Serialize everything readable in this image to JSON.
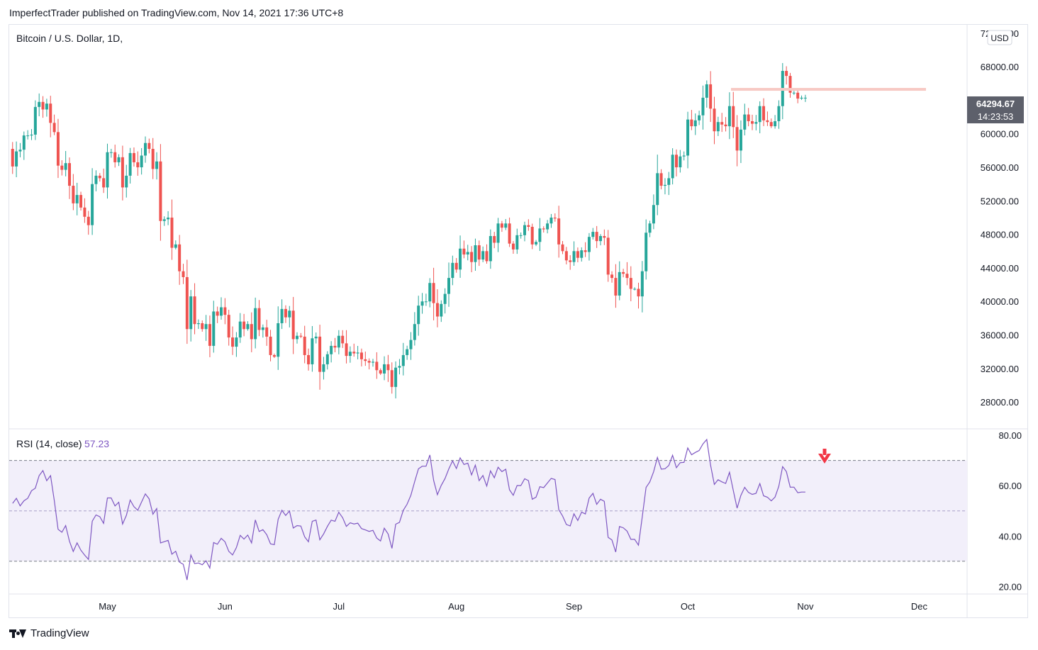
{
  "header": "ImperfectTrader published on TradingView.com, Nov 14, 2021 17:36 UTC+8",
  "footer": {
    "brand": "TradingView"
  },
  "chart_data": [
    {
      "type": "candlestick",
      "title": "Bitcoin / U.S. Dollar, 1D,",
      "currency": "USD",
      "last_price": "64294.67",
      "countdown": "14:23:53",
      "y_ticks": [
        "72000.00",
        "68000.00",
        "64000.00",
        "60000.00",
        "56000.00",
        "52000.00",
        "48000.00",
        "44000.00",
        "40000.00",
        "36000.00",
        "32000.00",
        "28000.00"
      ],
      "y_tick_values": [
        72000,
        68000,
        64000,
        60000,
        56000,
        52000,
        48000,
        44000,
        40000,
        36000,
        32000,
        28000
      ],
      "ylim": [
        24800,
        73000
      ],
      "x_ticks": [
        "May",
        "Jun",
        "Jul",
        "Aug",
        "Sep",
        "Oct",
        "Nov",
        "Dec"
      ],
      "x_tick_dates": [
        "2021-05-01",
        "2021-06-01",
        "2021-07-01",
        "2021-08-01",
        "2021-09-01",
        "2021-10-01",
        "2021-11-01",
        "2021-12-01"
      ],
      "start_date": "2021-04-01",
      "resistance_level": 65300,
      "colors": {
        "up": "#26a69a",
        "down": "#ef5350",
        "resistance": "#f7c9c4",
        "last_price_bg": "#5d606b"
      },
      "closes": [
        58700,
        59300,
        57800,
        58200,
        56100,
        57900,
        58100,
        59800,
        59800,
        59900,
        63200,
        63800,
        62900,
        63600,
        61300,
        60200,
        56200,
        55700,
        56500,
        53800,
        51700,
        52700,
        51200,
        50100,
        49100,
        54000,
        55000,
        54700,
        53600,
        57800,
        57800,
        56600,
        57200,
        53600,
        55000,
        57700,
        56600,
        56000,
        57400,
        58900,
        58200,
        55800,
        56700,
        49600,
        49800,
        50000,
        46400,
        46800,
        43600,
        42900,
        36700,
        40600,
        37300,
        37400,
        36700,
        37300,
        34700,
        38800,
        38300,
        39300,
        38400,
        35700,
        34600,
        35700,
        37600,
        36700,
        37300,
        35500,
        39200,
        36600,
        36900,
        35800,
        33600,
        33400,
        37400,
        39100,
        38100,
        38900,
        35500,
        35900,
        35800,
        33600,
        32500,
        35600,
        35800,
        31600,
        32500,
        33700,
        34700,
        34500,
        35900,
        35000,
        33500,
        34000,
        33800,
        33900,
        33100,
        32900,
        32700,
        32800,
        31800,
        31400,
        32500,
        31800,
        29800,
        32100,
        32300,
        33600,
        34300,
        35400,
        37300,
        39500,
        40000,
        40000,
        42200,
        39800,
        38200,
        39700,
        40900,
        42800,
        44600,
        43800,
        46300,
        45600,
        45900,
        44700,
        46700,
        45000,
        46000,
        44800,
        47800,
        47000,
        49300,
        48800,
        49300,
        46900,
        46200,
        47900,
        47900,
        49100,
        48900,
        46800,
        47100,
        48700,
        48600,
        49300,
        50000,
        49900,
        46800,
        46000,
        44900,
        44700,
        46000,
        45200,
        46100,
        45900,
        47700,
        48300,
        47200,
        47800,
        47600,
        43200,
        42800,
        40700,
        43500,
        43300,
        42800,
        41500,
        41500,
        40600,
        43600,
        48200,
        49300,
        51500,
        55300,
        53800,
        53900,
        54700,
        57500,
        56000,
        57300,
        57400,
        61700,
        60900,
        61600,
        62200,
        64300,
        65900,
        63000,
        60300,
        61400,
        61100,
        60900,
        63300,
        60800,
        58000,
        60500,
        62300,
        61500,
        61200,
        61400,
        63300,
        61600,
        61400,
        60900,
        61500,
        63300,
        67500,
        66900,
        64900,
        64900,
        64200,
        64300,
        64300
      ],
      "rsi": {
        "label": "RSI (14, close)",
        "value": "57.23",
        "y_ticks": [
          "80.00",
          "60.00",
          "40.00",
          "20.00"
        ],
        "y_tick_values": [
          80,
          60,
          40,
          20
        ],
        "ylim": [
          17,
          82
        ],
        "bands": [
          30,
          50,
          70
        ],
        "colors": {
          "line": "#7e57c2",
          "fill": "#f2effa"
        }
      }
    }
  ]
}
